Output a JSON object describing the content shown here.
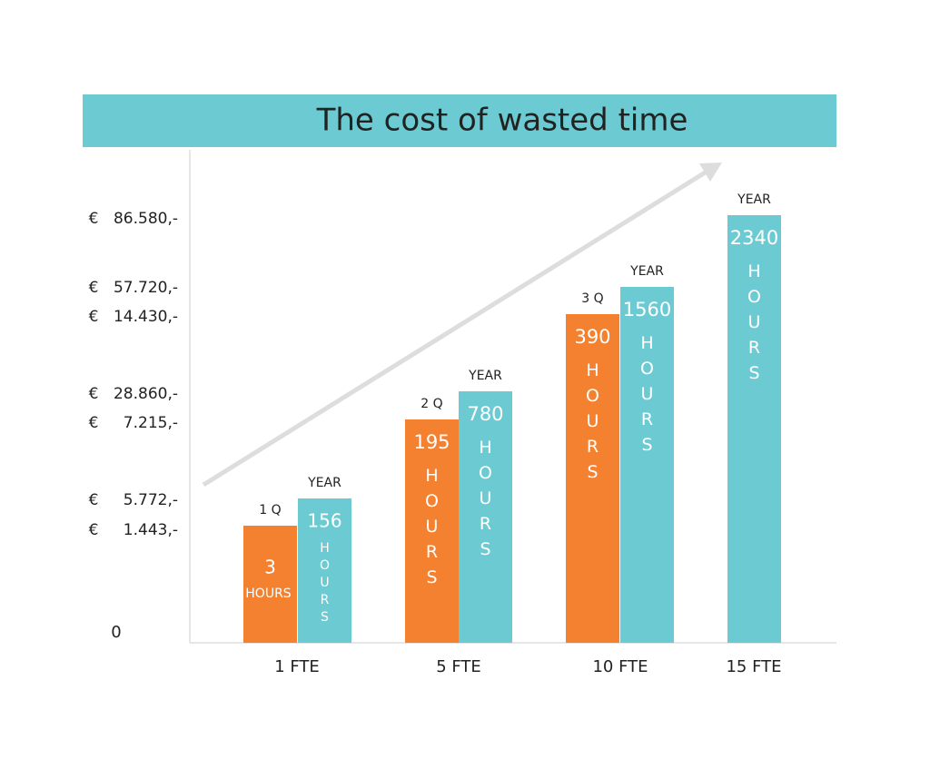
{
  "title": "The cost of wasted time",
  "y_axis_labels": [
    {
      "currency": "€",
      "amount": "86.580,-"
    },
    {
      "currency": "€",
      "amount": "57.720,-"
    },
    {
      "currency": "€",
      "amount": "14.430,-"
    },
    {
      "currency": "€",
      "amount": "28.860,-"
    },
    {
      "currency": "€",
      "amount": "7.215,-"
    },
    {
      "currency": "€",
      "amount": "5.772,-"
    },
    {
      "currency": "€",
      "amount": "1.443,-"
    }
  ],
  "y_axis_zero": "0",
  "categories": [
    "1 FTE",
    "5 FTE",
    "10 FTE",
    "15 FTE"
  ],
  "bars": [
    {
      "period": "1 Q",
      "hours": "3",
      "unit": "HOURS",
      "color": "#f4812f"
    },
    {
      "period": "YEAR",
      "hours": "156",
      "unit": "HOURS",
      "color": "#6ccbd2"
    },
    {
      "period": "2 Q",
      "hours": "195",
      "unit": "HOURS",
      "color": "#f4812f"
    },
    {
      "period": "YEAR",
      "hours": "780",
      "unit": "HOURS",
      "color": "#6ccbd2"
    },
    {
      "period": "3 Q",
      "hours": "390",
      "unit": "HOURS",
      "color": "#f4812f"
    },
    {
      "period": "YEAR",
      "hours": "1560",
      "unit": "HOURS",
      "color": "#6ccbd2"
    },
    {
      "period": "YEAR",
      "hours": "2340",
      "unit": "HOURS",
      "color": "#6ccbd2"
    }
  ]
}
